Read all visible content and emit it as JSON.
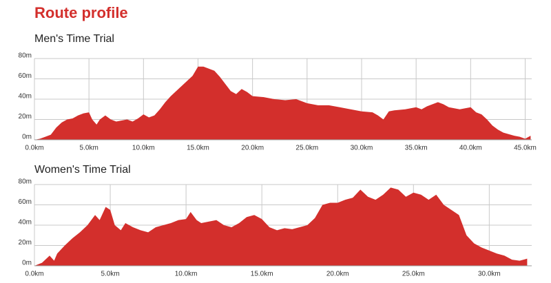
{
  "title": "Route profile",
  "chart_data": [
    {
      "type": "area",
      "subtitle": "Men's Time Trial",
      "color": "#d32f2c",
      "grid": true,
      "x": [
        0,
        0.5,
        1,
        1.5,
        2,
        2.5,
        3,
        3.5,
        4,
        4.5,
        5,
        5.3,
        5.7,
        6,
        6.5,
        7,
        7.5,
        8,
        8.5,
        9,
        9.5,
        10,
        10.5,
        11,
        11.5,
        12,
        12.5,
        13,
        13.5,
        14,
        14.5,
        15,
        15.5,
        16,
        16.5,
        17,
        17.5,
        18,
        18.5,
        19,
        19.5,
        20,
        21,
        22,
        23,
        24,
        25,
        26,
        27,
        28,
        29,
        30,
        31,
        31.5,
        32,
        32.5,
        33,
        34,
        35,
        35.5,
        36,
        37,
        37.5,
        38,
        39,
        40,
        40.5,
        41,
        41.5,
        42,
        42.5,
        43,
        44,
        44.5,
        45,
        45.5
      ],
      "values": [
        0,
        1,
        3,
        5,
        12,
        17,
        20,
        21,
        24,
        26,
        27,
        20,
        15,
        20,
        24,
        20,
        18,
        19,
        20,
        18,
        21,
        25,
        22,
        24,
        30,
        37,
        43,
        48,
        53,
        58,
        63,
        72,
        72,
        70,
        68,
        62,
        55,
        48,
        45,
        50,
        47,
        43,
        42,
        40,
        39,
        40,
        36,
        34,
        34,
        32,
        30,
        28,
        27,
        24,
        20,
        28,
        29,
        30,
        32,
        30,
        33,
        37,
        35,
        32,
        30,
        32,
        27,
        25,
        20,
        14,
        10,
        7,
        4,
        3,
        1,
        4
      ],
      "xlim": [
        0,
        45.6
      ],
      "ylim": [
        0,
        80
      ],
      "xticks": [
        {
          "value": 0,
          "label": "0.0km"
        },
        {
          "value": 5,
          "label": "5.0km"
        },
        {
          "value": 10,
          "label": "10.0km"
        },
        {
          "value": 15,
          "label": "15.0km"
        },
        {
          "value": 20,
          "label": "20.0km"
        },
        {
          "value": 25,
          "label": "25.0km"
        },
        {
          "value": 30,
          "label": "30.0km"
        },
        {
          "value": 35,
          "label": "35.0km"
        },
        {
          "value": 40,
          "label": "40.0km"
        },
        {
          "value": 45,
          "label": "45.0km"
        }
      ],
      "yticks": [
        {
          "value": 0,
          "label": "0m"
        },
        {
          "value": 20,
          "label": "20m"
        },
        {
          "value": 40,
          "label": "40m"
        },
        {
          "value": 60,
          "label": "60m"
        },
        {
          "value": 80,
          "label": "80m"
        }
      ]
    },
    {
      "type": "area",
      "subtitle": "Women's Time Trial",
      "color": "#d32f2c",
      "grid": true,
      "x": [
        0,
        0.5,
        1,
        1.3,
        1.5,
        2,
        2.5,
        3,
        3.5,
        4,
        4.3,
        4.7,
        5,
        5.3,
        5.7,
        6,
        6.5,
        7,
        7.5,
        8,
        8.5,
        9,
        9.5,
        10,
        10.3,
        10.7,
        11,
        12,
        12.5,
        13,
        13.5,
        14,
        14.5,
        15,
        15.5,
        16,
        16.5,
        17,
        18,
        18.5,
        19,
        19.5,
        20,
        20.5,
        21,
        21.5,
        22,
        22.5,
        23,
        23.5,
        24,
        24.5,
        25,
        25.5,
        26,
        26.5,
        27,
        27.5,
        28,
        28.5,
        29,
        29.5,
        30,
        30.5,
        31,
        31.5,
        32,
        32.5
      ],
      "values": [
        0,
        3,
        10,
        5,
        12,
        20,
        27,
        33,
        40,
        50,
        45,
        58,
        55,
        40,
        35,
        42,
        38,
        35,
        33,
        38,
        40,
        42,
        45,
        46,
        53,
        45,
        42,
        45,
        40,
        38,
        42,
        48,
        50,
        46,
        38,
        35,
        37,
        36,
        40,
        47,
        60,
        62,
        62,
        65,
        67,
        75,
        68,
        65,
        70,
        77,
        75,
        68,
        72,
        70,
        65,
        70,
        60,
        55,
        50,
        30,
        22,
        18,
        15,
        12,
        10,
        6,
        5,
        7
      ],
      "xlim": [
        0,
        32.8
      ],
      "ylim": [
        0,
        80
      ],
      "xticks": [
        {
          "value": 0,
          "label": "0.0km"
        },
        {
          "value": 5,
          "label": "5.0km"
        },
        {
          "value": 10,
          "label": "10.0km"
        },
        {
          "value": 15,
          "label": "15.0km"
        },
        {
          "value": 20,
          "label": "20.0km"
        },
        {
          "value": 25,
          "label": "25.0km"
        },
        {
          "value": 30,
          "label": "30.0km"
        }
      ],
      "yticks": [
        {
          "value": 0,
          "label": "0m"
        },
        {
          "value": 20,
          "label": "20m"
        },
        {
          "value": 40,
          "label": "40m"
        },
        {
          "value": 60,
          "label": "60m"
        },
        {
          "value": 80,
          "label": "80m"
        }
      ]
    }
  ]
}
